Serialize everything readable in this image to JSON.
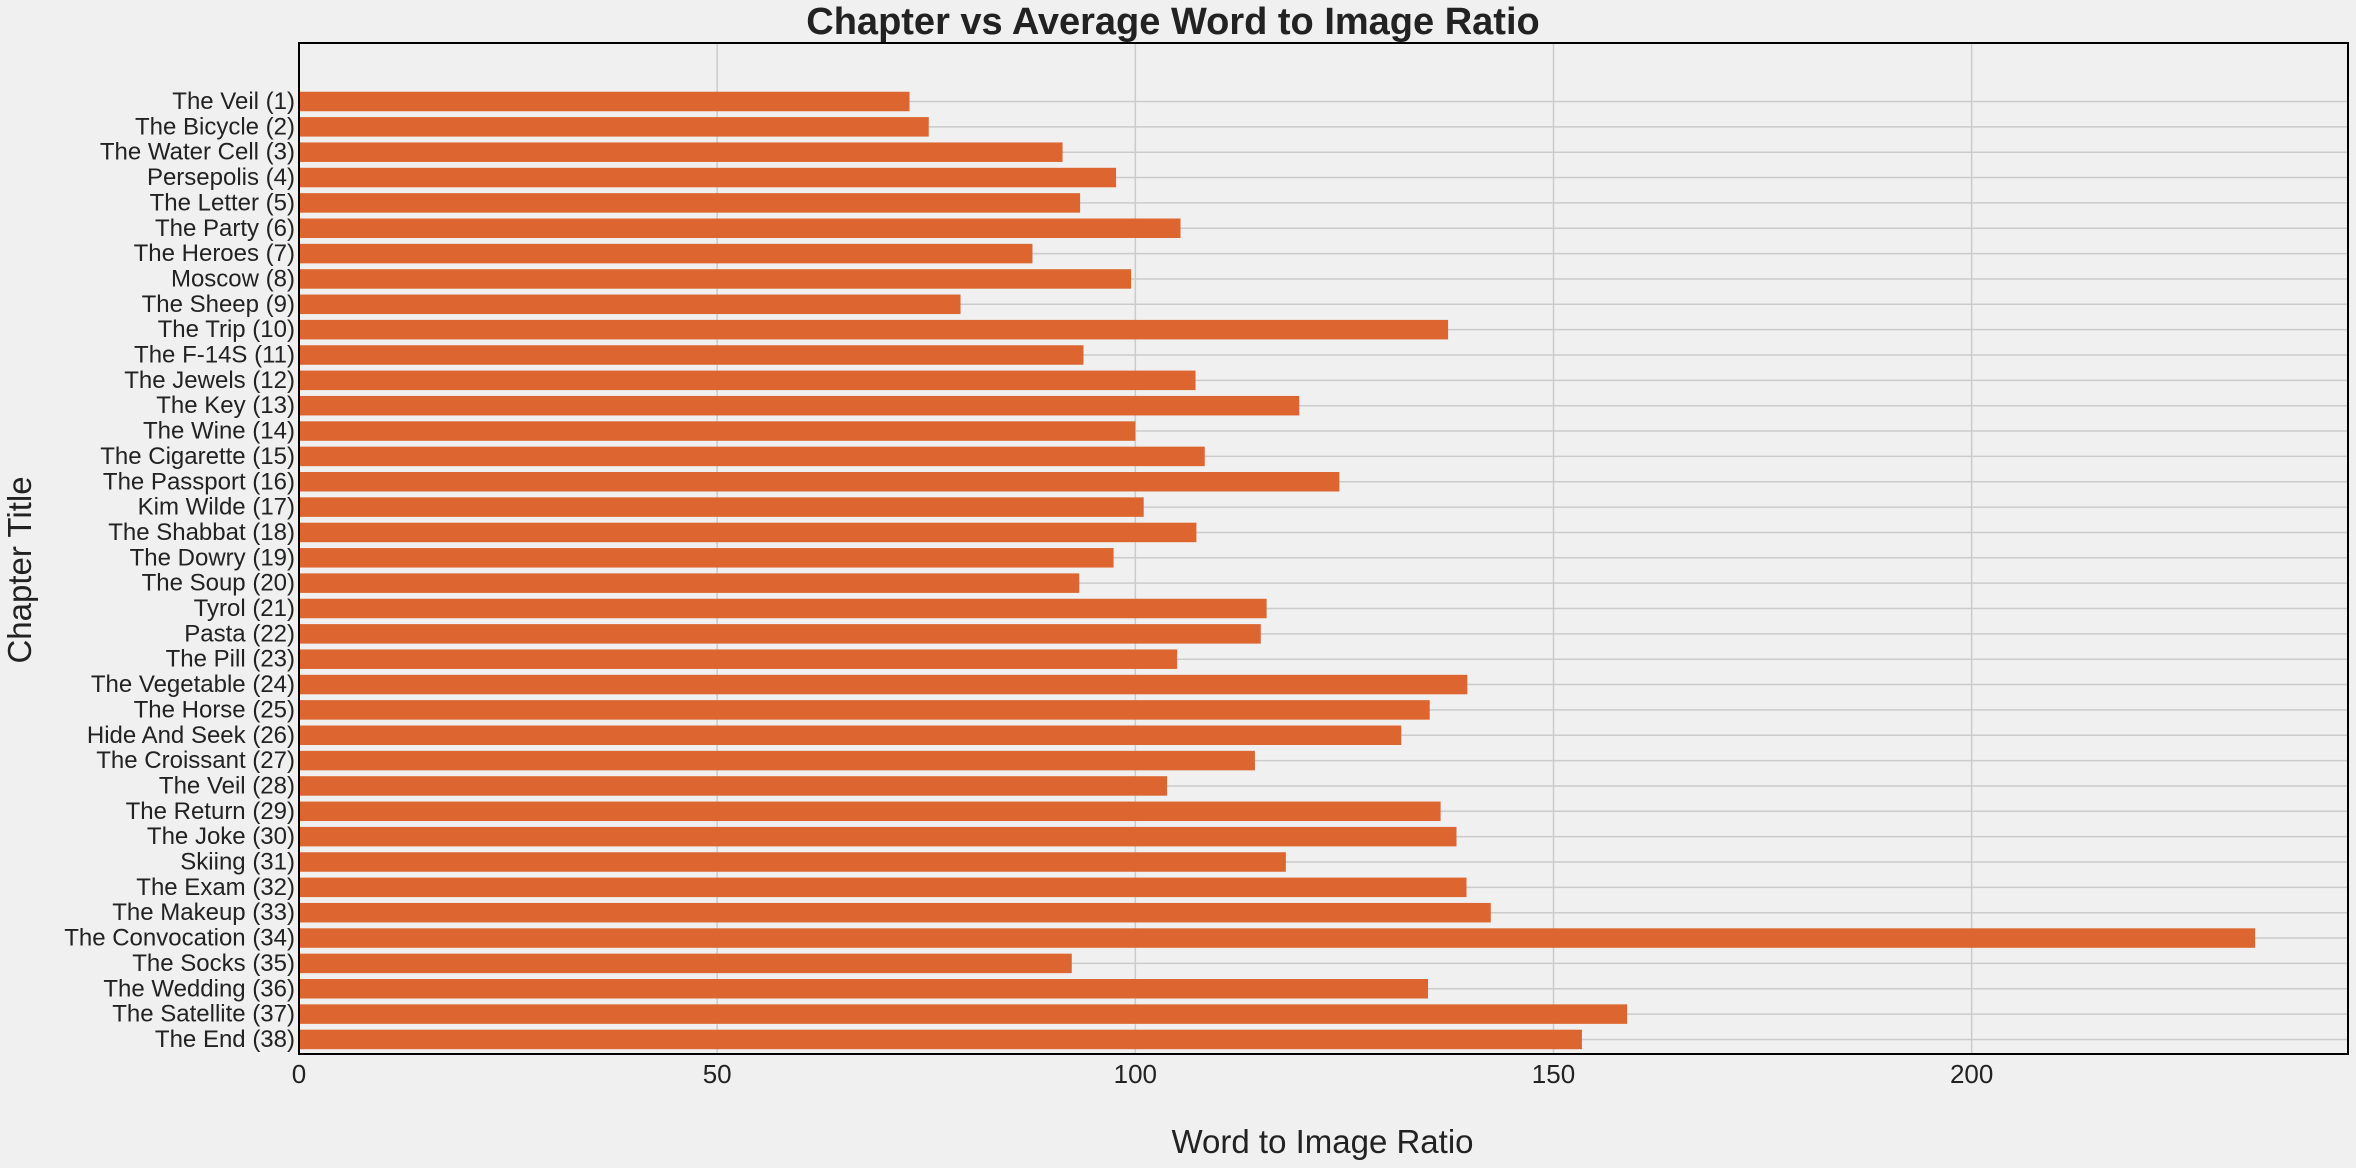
{
  "colors": {
    "bar": "#dd6630",
    "background": "#f0f0f0",
    "grid": "#cbcbcb",
    "text": "#222222",
    "axis": "#000000"
  },
  "chart_data": {
    "type": "bar",
    "orientation": "horizontal",
    "title": "Chapter vs Average Word to Image Ratio",
    "xlabel": "Word to Image Ratio",
    "ylabel": "Chapter Title",
    "xlim": [
      0,
      245
    ],
    "xticks": [
      0,
      50,
      100,
      150,
      200
    ],
    "grid": true,
    "legend": "none",
    "categories": [
      "The Veil (1)",
      "The Bicycle (2)",
      "The Water Cell (3)",
      "Persepolis (4)",
      "The Letter (5)",
      "The Party (6)",
      "The Heroes (7)",
      "Moscow (8)",
      "The Sheep (9)",
      "The Trip (10)",
      "The F-14S (11)",
      "The Jewels (12)",
      "The Key (13)",
      "The Wine (14)",
      "The Cigarette (15)",
      "The Passport (16)",
      "Kim Wilde (17)",
      "The Shabbat (18)",
      "The Dowry (19)",
      "The Soup (20)",
      "Tyrol (21)",
      "Pasta (22)",
      "The Pill (23)",
      "The Vegetable (24)",
      "The Horse (25)",
      "Hide And Seek (26)",
      "The Croissant (27)",
      "The Veil (28)",
      "The Return (29)",
      "The Joke (30)",
      "Skiing (31)",
      "The Exam (32)",
      "The Makeup (33)",
      "The Convocation (34)",
      "The Socks (35)",
      "The Wedding (36)",
      "The Satellite (37)",
      "The End (38)"
    ],
    "values": [
      73,
      75.3,
      91.3,
      97.7,
      93.4,
      105.4,
      87.7,
      99.5,
      79.1,
      137.4,
      93.8,
      107.2,
      119.6,
      100,
      108.3,
      124.4,
      101,
      107.3,
      97.4,
      93.3,
      115.7,
      115,
      105,
      139.7,
      135.2,
      131.8,
      114.3,
      103.8,
      136.5,
      138.4,
      118,
      139.6,
      142.5,
      233.9,
      92.4,
      135,
      158.8,
      153.4
    ]
  }
}
